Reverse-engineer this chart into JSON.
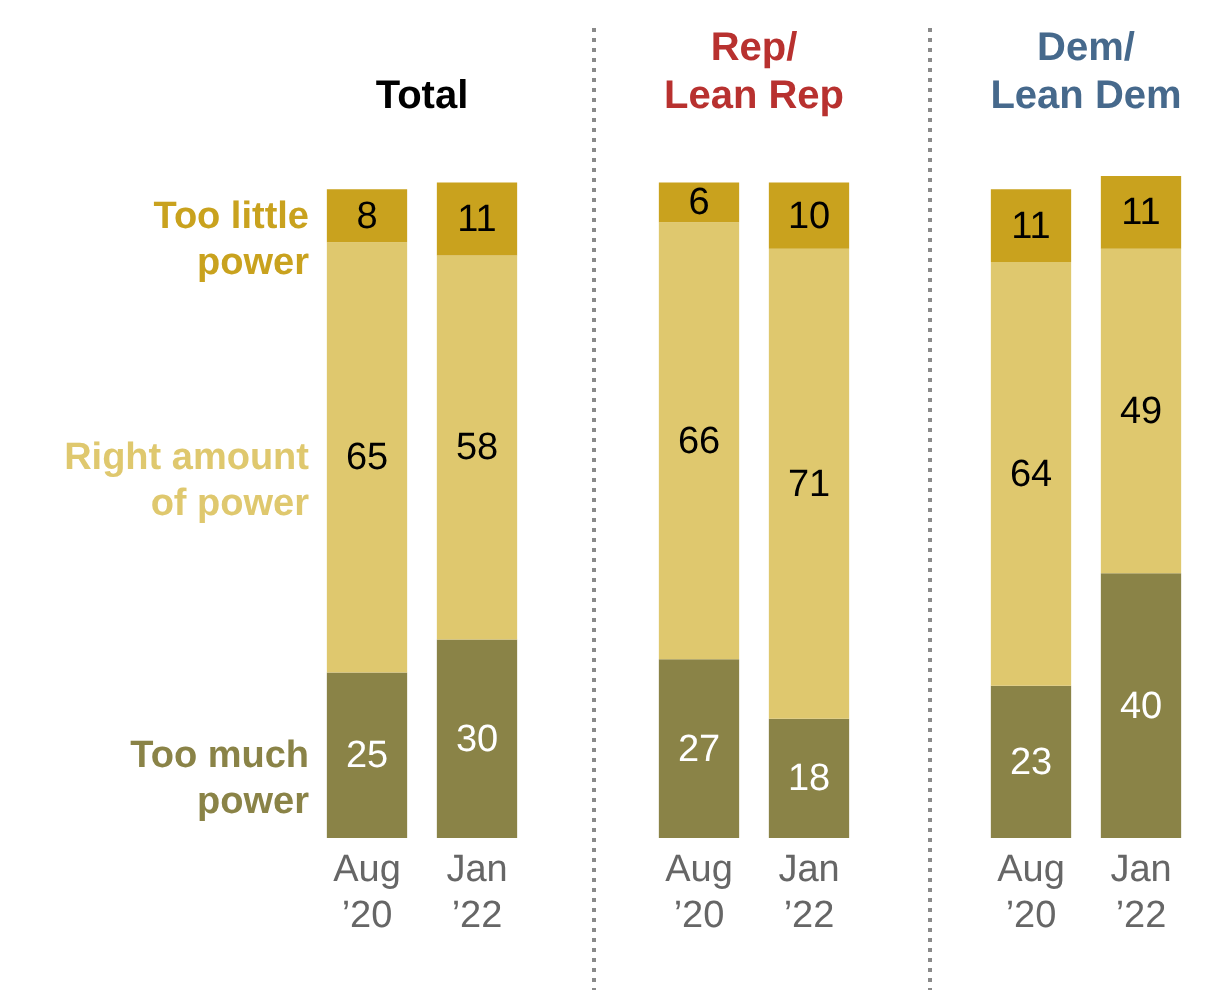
{
  "chart_data": [
    {
      "type": "bar",
      "title": "Total",
      "stacked": true,
      "data_labels": true,
      "categories": [
        "Aug ’20",
        "Jan ’22"
      ],
      "series": [
        {
          "name": "Too much power",
          "color": "#8a8347",
          "values": [
            25,
            30
          ]
        },
        {
          "name": "Right amount of power",
          "color": "#dfc86e",
          "values": [
            65,
            58
          ]
        },
        {
          "name": "Too little power",
          "color": "#c9a21e",
          "values": [
            8,
            11
          ]
        }
      ]
    },
    {
      "type": "bar",
      "title": "Rep/ Lean Rep",
      "stacked": true,
      "data_labels": true,
      "categories": [
        "Aug ’20",
        "Jan ’22"
      ],
      "series": [
        {
          "color": "#8a8347",
          "values": [
            27,
            18
          ]
        },
        {
          "color": "#dfc86e",
          "values": [
            66,
            71
          ]
        },
        {
          "color": "#c9a21e",
          "values": [
            6,
            10
          ]
        }
      ]
    },
    {
      "type": "bar",
      "title": "Dem/ Lean Dem",
      "stacked": true,
      "data_labels": true,
      "categories": [
        "Aug ’20",
        "Jan ’22"
      ],
      "series": [
        {
          "color": "#8a8347",
          "values": [
            23,
            40
          ]
        },
        {
          "color": "#dfc86e",
          "values": [
            64,
            49
          ]
        },
        {
          "color": "#c9a21e",
          "values": [
            11,
            11
          ]
        }
      ]
    }
  ]
}
